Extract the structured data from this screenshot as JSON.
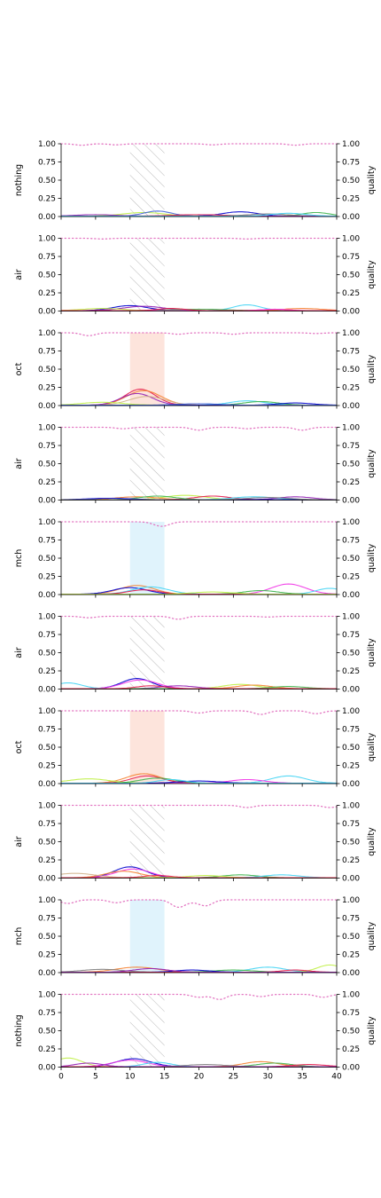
{
  "chart_data": {
    "type": "line",
    "layout": "10 stacked panels sharing x axis",
    "x": {
      "lim": [
        0,
        40
      ],
      "ticks": [
        0,
        5,
        10,
        15,
        20,
        25,
        30,
        35,
        40
      ],
      "tick_labels": [
        "0",
        "5",
        "10",
        "15",
        "20",
        "25",
        "30",
        "35",
        "40"
      ]
    },
    "y_left": {
      "lim": [
        0,
        1
      ],
      "ticks": [
        0,
        0.25,
        0.5,
        0.75,
        1
      ],
      "tick_labels": [
        "0.00",
        "0.25",
        "0.50",
        "0.75",
        "1.00"
      ]
    },
    "y_right": {
      "label": "quality",
      "lim": [
        0,
        1
      ],
      "ticks": [
        0,
        0.25,
        0.5,
        0.75,
        1
      ],
      "tick_labels": [
        "0.00",
        "0.25",
        "0.50",
        "0.75",
        "1.00"
      ]
    },
    "grid": false,
    "legend": "none",
    "series_colors": [
      "#e6194b",
      "#3cb44b",
      "#4363d8",
      "#f58231",
      "#911eb4",
      "#42d4f4",
      "#f032e6",
      "#bfef45",
      "#9a6324",
      "#808080",
      "#0000cd",
      "#d2b48c"
    ],
    "quality_color": "#e377c2",
    "stimulus_window": [
      10,
      15
    ],
    "panels": [
      {
        "ylabel": "nothing",
        "window": "hatch",
        "quality_dips": [
          [
            3,
            0.98
          ],
          [
            8,
            0.985
          ],
          [
            22,
            0.985
          ],
          [
            34,
            0.98
          ]
        ],
        "bumps": [
          [
            26,
            0.06,
            2.5,
            10
          ],
          [
            12,
            0.05,
            3,
            7
          ],
          [
            14,
            0.07,
            2,
            2
          ],
          [
            37,
            0.05,
            2,
            1
          ],
          [
            20,
            0.02,
            4,
            0
          ],
          [
            30,
            0.03,
            3,
            9
          ],
          [
            5,
            0.02,
            3,
            4
          ],
          [
            33,
            0.04,
            2.5,
            5
          ]
        ]
      },
      {
        "ylabel": "air",
        "window": "hatch",
        "quality_dips": [
          [
            6,
            0.99
          ],
          [
            27,
            0.99
          ]
        ],
        "bumps": [
          [
            10,
            0.07,
            2.5,
            10
          ],
          [
            12,
            0.06,
            3,
            4
          ],
          [
            27,
            0.08,
            2,
            5
          ],
          [
            35,
            0.03,
            3,
            3
          ],
          [
            20,
            0.02,
            4,
            1
          ],
          [
            6,
            0.03,
            3,
            7
          ],
          [
            31,
            0.02,
            2,
            6
          ],
          [
            16,
            0.03,
            2,
            0
          ]
        ]
      },
      {
        "ylabel": "oct",
        "window": "red",
        "quality_dips": [
          [
            4,
            0.96
          ],
          [
            17,
            0.98
          ],
          [
            25,
            0.98
          ],
          [
            37,
            0.99
          ]
        ],
        "bumps": [
          [
            11.5,
            0.22,
            2.2,
            0
          ],
          [
            12,
            0.2,
            2.5,
            3
          ],
          [
            11,
            0.16,
            2.3,
            4
          ],
          [
            12.5,
            0.12,
            2.6,
            11
          ],
          [
            27,
            0.06,
            2.5,
            5
          ],
          [
            29,
            0.05,
            2.5,
            1
          ],
          [
            6,
            0.04,
            3,
            7
          ],
          [
            34,
            0.03,
            2.5,
            10
          ],
          [
            20,
            0.02,
            3,
            2
          ]
        ]
      },
      {
        "ylabel": "air",
        "window": "hatch",
        "quality_dips": [
          [
            9,
            0.98
          ],
          [
            20,
            0.96
          ],
          [
            27,
            0.98
          ],
          [
            35,
            0.96
          ]
        ],
        "bumps": [
          [
            18,
            0.06,
            3,
            7
          ],
          [
            11,
            0.04,
            3,
            3
          ],
          [
            22,
            0.05,
            2.5,
            0
          ],
          [
            28,
            0.04,
            3,
            5
          ],
          [
            34,
            0.04,
            2.5,
            4
          ],
          [
            14,
            0.05,
            2.5,
            1
          ],
          [
            7,
            0.02,
            3,
            10
          ],
          [
            30,
            0.03,
            3,
            9
          ]
        ]
      },
      {
        "ylabel": "mch",
        "window": "blue",
        "quality_dips": [
          [
            14,
            0.97
          ],
          [
            15,
            0.96
          ]
        ],
        "bumps": [
          [
            11,
            0.12,
            2.5,
            3
          ],
          [
            33,
            0.14,
            2.5,
            6
          ],
          [
            10,
            0.09,
            2.5,
            10
          ],
          [
            13,
            0.1,
            2.6,
            5
          ],
          [
            39,
            0.08,
            2,
            5
          ],
          [
            29,
            0.05,
            2.5,
            1
          ],
          [
            12,
            0.06,
            2.2,
            0
          ],
          [
            22,
            0.03,
            3,
            7
          ]
        ]
      },
      {
        "ylabel": "air",
        "window": "hatch",
        "quality_dips": [
          [
            4,
            0.98
          ],
          [
            17,
            0.96
          ],
          [
            30,
            0.99
          ]
        ],
        "bumps": [
          [
            11,
            0.14,
            2.2,
            10
          ],
          [
            11.5,
            0.12,
            2.5,
            6
          ],
          [
            1,
            0.08,
            2,
            5
          ],
          [
            26,
            0.06,
            2.5,
            7
          ],
          [
            17,
            0.04,
            2.5,
            4
          ],
          [
            28,
            0.05,
            2.5,
            3
          ],
          [
            33,
            0.03,
            2.5,
            1
          ],
          [
            13,
            0.04,
            2,
            0
          ]
        ]
      },
      {
        "ylabel": "oct",
        "window": "red",
        "quality_dips": [
          [
            20,
            0.97
          ],
          [
            29,
            0.95
          ],
          [
            37,
            0.96
          ]
        ],
        "bumps": [
          [
            12,
            0.13,
            2.5,
            3
          ],
          [
            12.5,
            0.1,
            2.3,
            0
          ],
          [
            33,
            0.1,
            2.5,
            5
          ],
          [
            4,
            0.06,
            3,
            7
          ],
          [
            27,
            0.05,
            2.5,
            6
          ],
          [
            14,
            0.07,
            2.5,
            1
          ],
          [
            20,
            0.03,
            3,
            10
          ],
          [
            16,
            0.05,
            2,
            5
          ]
        ]
      },
      {
        "ylabel": "air",
        "window": "hatch",
        "quality_dips": [
          [
            27,
            0.97
          ],
          [
            39,
            0.97
          ]
        ],
        "bumps": [
          [
            10,
            0.15,
            2.3,
            10
          ],
          [
            10.5,
            0.12,
            2.5,
            6
          ],
          [
            9,
            0.09,
            2.5,
            3
          ],
          [
            2,
            0.06,
            3,
            11
          ],
          [
            26,
            0.04,
            2.5,
            1
          ],
          [
            32,
            0.04,
            2.5,
            5
          ],
          [
            21,
            0.03,
            2.5,
            7
          ],
          [
            14,
            0.03,
            2,
            0
          ]
        ]
      },
      {
        "ylabel": "mch",
        "window": "blue",
        "quality_dips": [
          [
            1,
            0.95
          ],
          [
            8,
            0.96
          ],
          [
            17,
            0.9
          ],
          [
            19,
            0.98
          ],
          [
            21,
            0.92
          ]
        ],
        "bumps": [
          [
            11,
            0.07,
            3,
            3
          ],
          [
            30,
            0.07,
            2.5,
            5
          ],
          [
            39,
            0.1,
            1.8,
            7
          ],
          [
            25,
            0.03,
            3,
            1
          ],
          [
            6,
            0.04,
            3,
            9
          ],
          [
            19,
            0.03,
            2.5,
            10
          ],
          [
            34,
            0.03,
            2,
            0
          ],
          [
            13,
            0.05,
            2.5,
            4
          ]
        ]
      },
      {
        "ylabel": "nothing",
        "window": "hatch",
        "quality_dips": [
          [
            20,
            0.96
          ],
          [
            23,
            0.93
          ],
          [
            29,
            0.97
          ],
          [
            38,
            0.96
          ]
        ],
        "bumps": [
          [
            1,
            0.12,
            2,
            7
          ],
          [
            10.5,
            0.11,
            2.5,
            10
          ],
          [
            10,
            0.09,
            2.5,
            6
          ],
          [
            29,
            0.07,
            2.5,
            3
          ],
          [
            31,
            0.05,
            2.5,
            1
          ],
          [
            14,
            0.06,
            2,
            5
          ],
          [
            21,
            0.03,
            3,
            9
          ],
          [
            36,
            0.03,
            2.5,
            0
          ],
          [
            4,
            0.05,
            2,
            4
          ]
        ]
      }
    ]
  }
}
